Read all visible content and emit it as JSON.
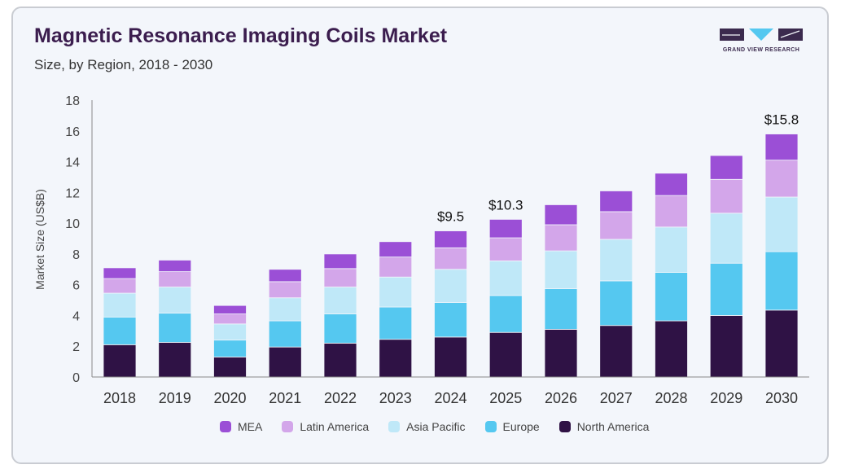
{
  "header": {
    "title": "Magnetic Resonance Imaging Coils Market",
    "subtitle": "Size, by Region, 2018 - 2030",
    "logo_text": "GRAND VIEW RESEARCH"
  },
  "colors": {
    "MEA": "#9b4fd6",
    "Latin America": "#d3a6ea",
    "Asia Pacific": "#bfe8f8",
    "Europe": "#55c8f0",
    "North America": "#2f1245"
  },
  "chart_data": {
    "type": "bar",
    "stacked": true,
    "categories": [
      "2018",
      "2019",
      "2020",
      "2021",
      "2022",
      "2023",
      "2024",
      "2025",
      "2026",
      "2027",
      "2028",
      "2029",
      "2030"
    ],
    "series": [
      {
        "name": "North America",
        "values": [
          2.1,
          2.25,
          1.3,
          1.95,
          2.2,
          2.45,
          2.6,
          2.9,
          3.1,
          3.35,
          3.65,
          4.0,
          4.35
        ]
      },
      {
        "name": "Europe",
        "values": [
          1.8,
          1.9,
          1.1,
          1.7,
          1.9,
          2.1,
          2.25,
          2.4,
          2.65,
          2.9,
          3.15,
          3.4,
          3.8
        ]
      },
      {
        "name": "Asia Pacific",
        "values": [
          1.55,
          1.7,
          1.05,
          1.5,
          1.75,
          1.95,
          2.15,
          2.25,
          2.45,
          2.7,
          2.95,
          3.25,
          3.55
        ]
      },
      {
        "name": "Latin America",
        "values": [
          0.95,
          1.0,
          0.65,
          1.05,
          1.2,
          1.3,
          1.4,
          1.5,
          1.7,
          1.8,
          2.05,
          2.2,
          2.4
        ]
      },
      {
        "name": "MEA",
        "values": [
          0.7,
          0.75,
          0.55,
          0.8,
          0.95,
          1.0,
          1.1,
          1.2,
          1.3,
          1.35,
          1.45,
          1.55,
          1.7
        ]
      }
    ],
    "data_labels": [
      {
        "category": "2024",
        "text": "$9.5"
      },
      {
        "category": "2025",
        "text": "$10.3"
      },
      {
        "category": "2030",
        "text": "$15.8"
      }
    ],
    "ylabel": "Market Size (US$B)",
    "xlabel": "",
    "ylim": [
      0,
      18
    ],
    "yticks": [
      "0",
      "2",
      "4",
      "6",
      "8",
      "10",
      "12",
      "14",
      "16",
      "18"
    ],
    "legend_position": "bottom",
    "legend_order": [
      "MEA",
      "Latin America",
      "Asia Pacific",
      "Europe",
      "North America"
    ],
    "grid": false
  }
}
